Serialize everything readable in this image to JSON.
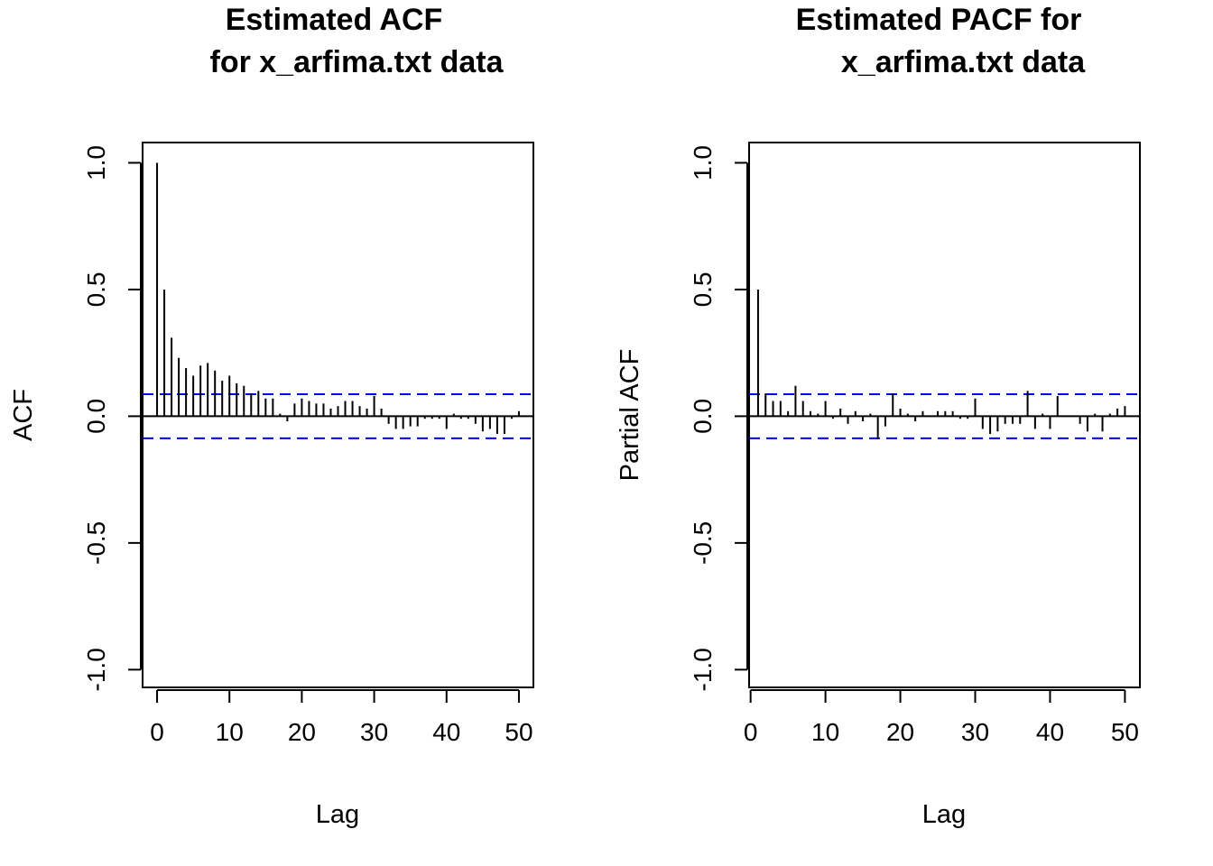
{
  "chart_data": [
    {
      "type": "bar",
      "title_lines": [
        "Estimated ACF",
        "for x_arfima.txt data"
      ],
      "xlabel": "Lag",
      "ylabel": "ACF",
      "xlim": [
        -2,
        52
      ],
      "ylim": [
        -1.07,
        1.08
      ],
      "x_ticks": [
        0,
        10,
        20,
        30,
        40,
        50
      ],
      "x_tick_labels": [
        "0",
        "10",
        "20",
        "30",
        "40",
        "50"
      ],
      "y_ticks": [
        -1.0,
        -0.5,
        0.0,
        0.5,
        1.0
      ],
      "y_tick_labels": [
        "-1.0",
        "-0.5",
        "0.0",
        "0.5",
        "1.0"
      ],
      "confidence_bounds": [
        0.087,
        -0.087
      ],
      "bound_color": "#0000ff",
      "x": [
        0,
        1,
        2,
        3,
        4,
        5,
        6,
        7,
        8,
        9,
        10,
        11,
        12,
        13,
        14,
        15,
        16,
        17,
        18,
        19,
        20,
        21,
        22,
        23,
        24,
        25,
        26,
        27,
        28,
        29,
        30,
        31,
        32,
        33,
        34,
        35,
        36,
        37,
        38,
        39,
        40,
        41,
        42,
        43,
        44,
        45,
        46,
        47,
        48,
        49,
        50
      ],
      "values": [
        1.0,
        0.5,
        0.31,
        0.23,
        0.19,
        0.16,
        0.2,
        0.21,
        0.18,
        0.14,
        0.16,
        0.13,
        0.12,
        0.09,
        0.1,
        0.07,
        0.07,
        0.01,
        -0.02,
        0.05,
        0.07,
        0.06,
        0.05,
        0.05,
        0.03,
        0.04,
        0.06,
        0.06,
        0.04,
        0.03,
        0.08,
        0.03,
        -0.03,
        -0.05,
        -0.05,
        -0.04,
        -0.04,
        -0.01,
        -0.01,
        -0.01,
        -0.05,
        0.01,
        -0.01,
        -0.01,
        -0.03,
        -0.06,
        -0.05,
        -0.07,
        -0.07,
        -0.01,
        0.02
      ]
    },
    {
      "type": "bar",
      "title_lines": [
        "Estimated PACF for",
        "x_arfima.txt data"
      ],
      "xlabel": "Lag",
      "ylabel": "Partial ACF",
      "xlim": [
        -0.2,
        52
      ],
      "ylim": [
        -1.07,
        1.08
      ],
      "x_ticks": [
        0,
        10,
        20,
        30,
        40,
        50
      ],
      "x_tick_labels": [
        "0",
        "10",
        "20",
        "30",
        "40",
        "50"
      ],
      "y_ticks": [
        -1.0,
        -0.5,
        0.0,
        0.5,
        1.0
      ],
      "y_tick_labels": [
        "-1.0",
        "-0.5",
        "0.0",
        "0.5",
        "1.0"
      ],
      "confidence_bounds": [
        0.087,
        -0.087
      ],
      "bound_color": "#0000ff",
      "x": [
        1,
        2,
        3,
        4,
        5,
        6,
        7,
        8,
        9,
        10,
        11,
        12,
        13,
        14,
        15,
        16,
        17,
        18,
        19,
        20,
        21,
        22,
        23,
        24,
        25,
        26,
        27,
        28,
        29,
        30,
        31,
        32,
        33,
        34,
        35,
        36,
        37,
        38,
        39,
        40,
        41,
        42,
        43,
        44,
        45,
        46,
        47,
        48,
        49,
        50
      ],
      "values": [
        0.5,
        0.09,
        0.06,
        0.06,
        0.02,
        0.12,
        0.06,
        0.02,
        0.01,
        0.06,
        -0.01,
        0.03,
        -0.03,
        0.02,
        -0.02,
        0.01,
        -0.09,
        -0.04,
        0.09,
        0.03,
        0.01,
        -0.02,
        0.02,
        0.0,
        0.02,
        0.02,
        0.02,
        -0.01,
        -0.01,
        0.07,
        -0.05,
        -0.07,
        -0.06,
        -0.03,
        -0.03,
        -0.03,
        0.1,
        -0.05,
        0.01,
        -0.05,
        0.08,
        0.0,
        0.0,
        -0.03,
        -0.06,
        0.01,
        -0.06,
        0.01,
        0.03,
        0.04
      ]
    }
  ]
}
